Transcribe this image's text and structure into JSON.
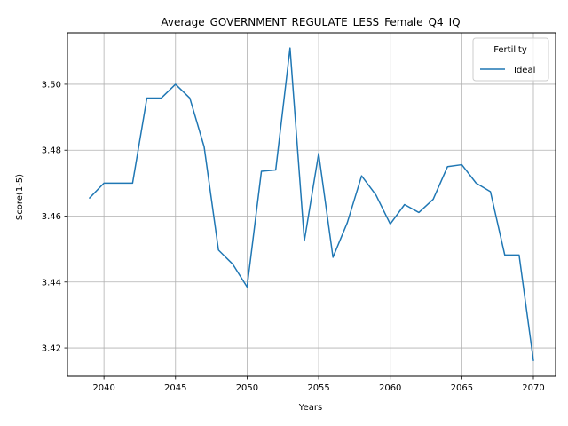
{
  "chart_data": {
    "type": "line",
    "title": "Average_GOVERNMENT_REGULATE_LESS_Female_Q4_IQ",
    "xlabel": "Years",
    "ylabel": "Score(1-5)",
    "xlim": [
      2037.45,
      2071.55
    ],
    "ylim": [
      3.4114,
      3.5156
    ],
    "xticks": [
      2040,
      2045,
      2050,
      2055,
      2060,
      2065,
      2070
    ],
    "yticks": [
      3.42,
      3.44,
      3.46,
      3.48,
      3.5
    ],
    "xtick_labels": [
      "2040",
      "2045",
      "2050",
      "2055",
      "2060",
      "2065",
      "2070"
    ],
    "ytick_labels": [
      "3.42",
      "3.44",
      "3.46",
      "3.48",
      "3.50"
    ],
    "grid": true,
    "legend": {
      "title": "Fertility",
      "placement": "upper right"
    },
    "series": [
      {
        "name": "Ideal",
        "color": "#1f77b4",
        "x": [
          2039,
          2040,
          2041,
          2042,
          2043,
          2044,
          2045,
          2046,
          2047,
          2048,
          2049,
          2050,
          2051,
          2052,
          2053,
          2054,
          2055,
          2056,
          2057,
          2058,
          2059,
          2060,
          2061,
          2062,
          2063,
          2064,
          2065,
          2066,
          2067,
          2068,
          2069,
          2070
        ],
        "values": [
          3.4655,
          3.47,
          3.47,
          3.47,
          3.4958,
          3.4958,
          3.5,
          3.4958,
          3.481,
          3.4497,
          3.4454,
          3.4385,
          3.4736,
          3.474,
          3.511,
          3.4525,
          3.479,
          3.4475,
          3.458,
          3.4722,
          3.4664,
          3.4576,
          3.4635,
          3.4611,
          3.4651,
          3.475,
          3.4756,
          3.47,
          3.4674,
          3.4482,
          3.4482,
          3.4162
        ]
      }
    ]
  }
}
